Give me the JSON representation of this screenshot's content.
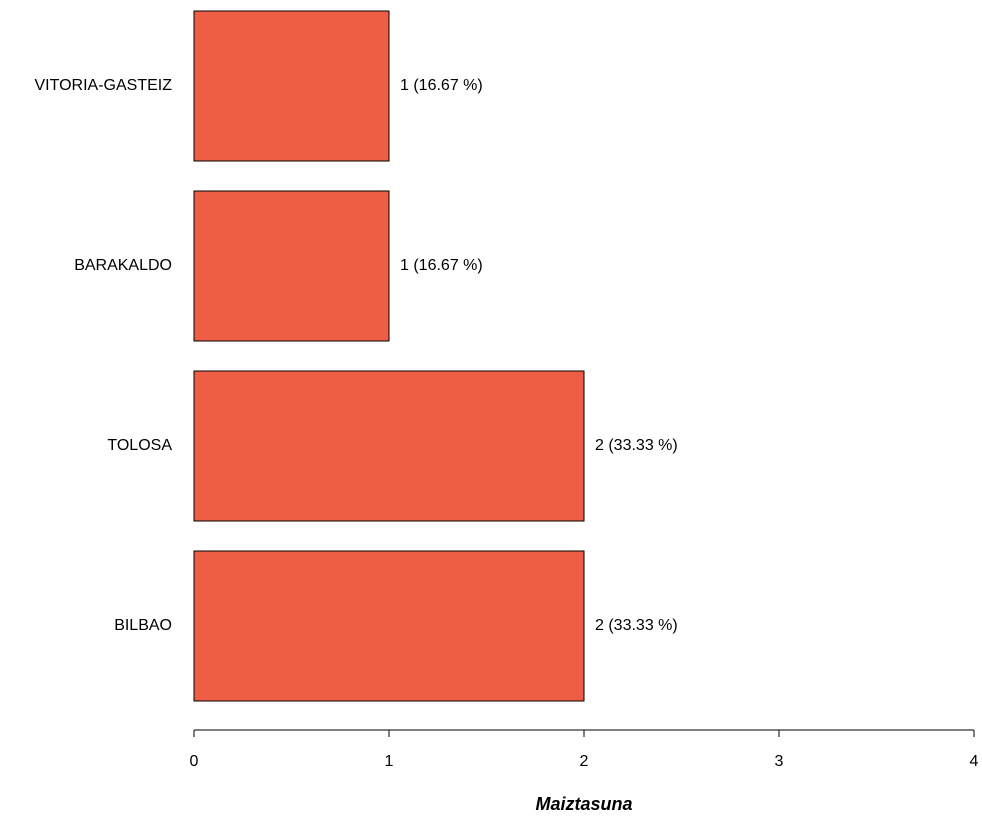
{
  "chart_data": {
    "type": "bar",
    "orientation": "horizontal",
    "categories": [
      "BILBAO",
      "TOLOSA",
      "BARAKALDO",
      "VITORIA-GASTEIZ"
    ],
    "values": [
      2,
      2,
      1,
      1
    ],
    "data_labels": [
      "2 (33.33 %)",
      "2 (33.33 %)",
      "1 (16.67 %)",
      "1 (16.67 %)"
    ],
    "xlabel": "Maiztasuna",
    "ylabel": "",
    "title": "",
    "xlim": [
      0,
      4
    ],
    "xticks": [
      "0",
      "1",
      "2",
      "3",
      "4"
    ],
    "grid": false,
    "bar_color": "#EE5E44"
  }
}
